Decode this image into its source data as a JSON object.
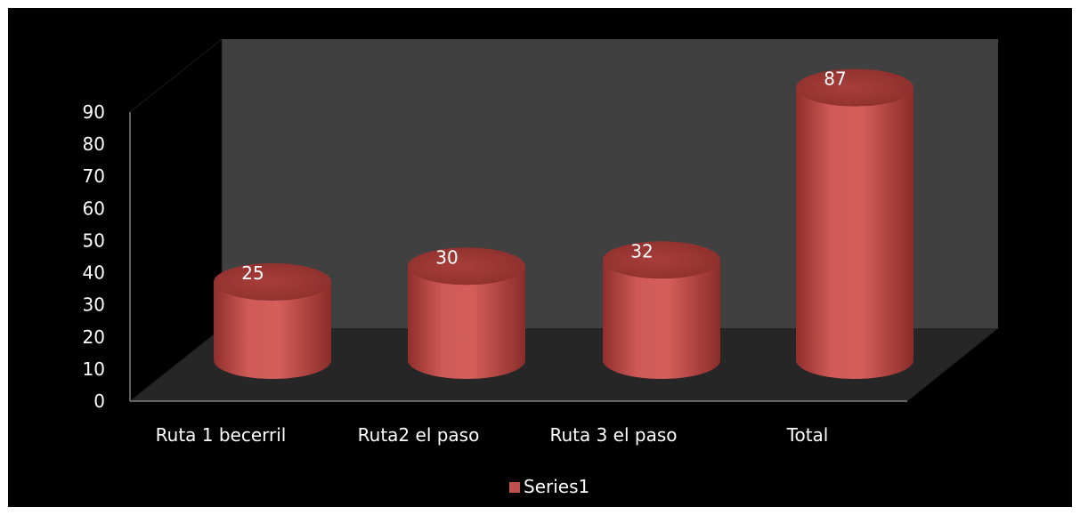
{
  "chart_data": {
    "type": "bar",
    "style": "3d-cylinder",
    "categories": [
      "Ruta 1 becerril",
      "Ruta2 el paso",
      "Ruta 3 el paso",
      "Total"
    ],
    "series": [
      {
        "name": "Series1",
        "values": [
          25,
          30,
          32,
          87
        ],
        "color": "#c0504d"
      }
    ],
    "data_labels": [
      "25",
      "30",
      "32",
      "87"
    ],
    "ylim": [
      0,
      90
    ],
    "yticks": [
      0,
      10,
      20,
      30,
      40,
      50,
      60,
      70,
      80,
      90
    ],
    "ytick_labels": [
      "0",
      "10",
      "20",
      "30",
      "40",
      "50",
      "60",
      "70",
      "80",
      "90"
    ],
    "grid": false,
    "legend": {
      "position": "bottom",
      "entries": [
        "Series1"
      ]
    },
    "colors": {
      "background": "#000000",
      "back_wall": "#404040",
      "floor": "#262626",
      "side_wall": "#000000",
      "axis_line": "#808080",
      "bar": "#c0504d",
      "text": "#ffffff"
    }
  }
}
